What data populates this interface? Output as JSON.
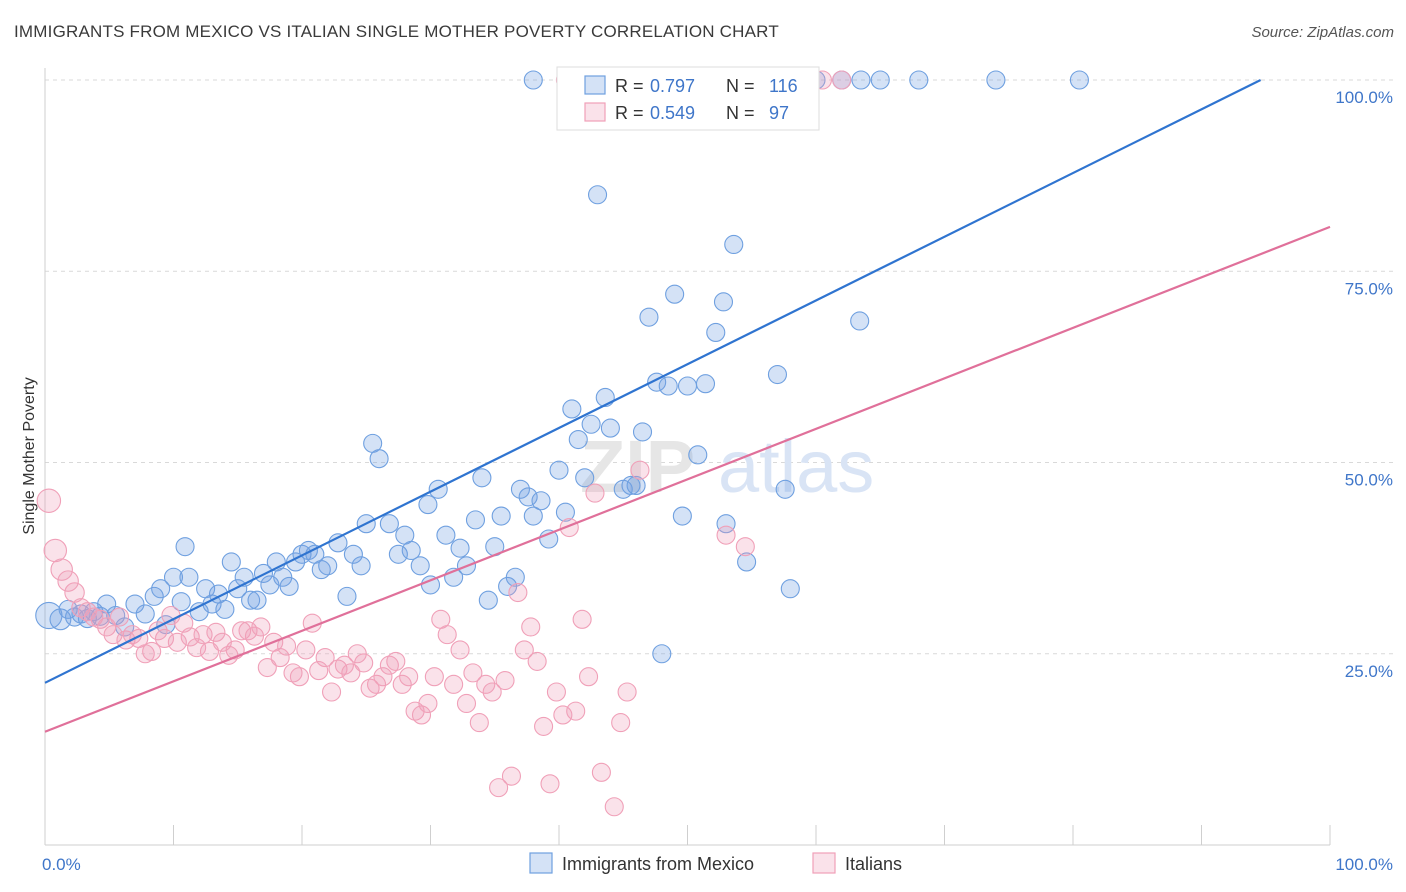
{
  "title": "IMMIGRANTS FROM MEXICO VS ITALIAN SINGLE MOTHER POVERTY CORRELATION CHART",
  "source": "Source: ZipAtlas.com",
  "watermark": {
    "zip": "ZIP",
    "atlas": "atlas"
  },
  "colors": {
    "blue": "#6fa0e0",
    "blue_fill": "rgba(111,160,224,0.30)",
    "blue_line": "#2f74d0",
    "pink": "#f0a0b8",
    "pink_fill": "rgba(240,160,184,0.30)",
    "pink_line": "#e0709a",
    "tick_text": "#3f76c9",
    "grid": "#d9d9d9"
  },
  "chart_data": {
    "type": "scatter",
    "xlabel": "",
    "ylabel": "Single Mother Poverty",
    "xlim": [
      0,
      100
    ],
    "ylim": [
      0,
      100
    ],
    "x_tick_labels": [
      "0.0%",
      "100.0%"
    ],
    "y_ticks": [
      25,
      50,
      75,
      100
    ],
    "y_tick_labels": [
      "25.0%",
      "50.0%",
      "75.0%",
      "100.0%"
    ],
    "grid": true,
    "legend_position": "top-center",
    "legend_stats": [
      {
        "r_label": "R =",
        "r_value": "0.797",
        "n_label": "N =",
        "n_value": "116"
      },
      {
        "r_label": "R =",
        "r_value": "0.549",
        "n_label": "N =",
        "n_value": "97"
      }
    ],
    "series": [
      {
        "name": "Immigrants from Mexico",
        "color": "#6fa0e0",
        "trend": {
          "x0": 0,
          "y0": 21.2,
          "x1": 94.6,
          "y1": 100
        },
        "points": [
          [
            0.3,
            30
          ],
          [
            1.2,
            29.5
          ],
          [
            1.8,
            30.8
          ],
          [
            2.3,
            29.8
          ],
          [
            2.8,
            30.2
          ],
          [
            3.3,
            29.6
          ],
          [
            3.8,
            30.5
          ],
          [
            4.3,
            29.9
          ],
          [
            4.8,
            31.5
          ],
          [
            5.5,
            30
          ],
          [
            6.2,
            28.5
          ],
          [
            7,
            31.5
          ],
          [
            7.8,
            30.2
          ],
          [
            8.5,
            32.5
          ],
          [
            9,
            33.5
          ],
          [
            9.4,
            28.8
          ],
          [
            10,
            35
          ],
          [
            10.6,
            31.8
          ],
          [
            10.9,
            39
          ],
          [
            11.2,
            35
          ],
          [
            12,
            30.5
          ],
          [
            12.5,
            33.5
          ],
          [
            13,
            31.5
          ],
          [
            13.5,
            32.8
          ],
          [
            14,
            30.8
          ],
          [
            14.5,
            37
          ],
          [
            15,
            33.5
          ],
          [
            15.5,
            35
          ],
          [
            16,
            32
          ],
          [
            16.5,
            32
          ],
          [
            17,
            35.5
          ],
          [
            17.5,
            34
          ],
          [
            18,
            37
          ],
          [
            18.5,
            35
          ],
          [
            19,
            33.8
          ],
          [
            19.5,
            37
          ],
          [
            20,
            38
          ],
          [
            20.5,
            38.5
          ],
          [
            21,
            38
          ],
          [
            21.5,
            36
          ],
          [
            22,
            36.5
          ],
          [
            22.8,
            39.5
          ],
          [
            23.5,
            32.5
          ],
          [
            24,
            38
          ],
          [
            24.6,
            36.5
          ],
          [
            25,
            42
          ],
          [
            25.5,
            52.5
          ],
          [
            26,
            50.5
          ],
          [
            26.8,
            42
          ],
          [
            27.5,
            38
          ],
          [
            28,
            40.5
          ],
          [
            28.5,
            38.5
          ],
          [
            29.2,
            36.5
          ],
          [
            29.8,
            44.5
          ],
          [
            30,
            34
          ],
          [
            30.6,
            46.5
          ],
          [
            31.2,
            40.5
          ],
          [
            31.8,
            35
          ],
          [
            32.3,
            38.8
          ],
          [
            32.8,
            36.5
          ],
          [
            33.5,
            42.5
          ],
          [
            34,
            48
          ],
          [
            34.5,
            32
          ],
          [
            35,
            39
          ],
          [
            35.5,
            43
          ],
          [
            36,
            33.8
          ],
          [
            36.6,
            35
          ],
          [
            37,
            46.5
          ],
          [
            37.6,
            45.5
          ],
          [
            38,
            43
          ],
          [
            38.6,
            45
          ],
          [
            39.2,
            40
          ],
          [
            40,
            49
          ],
          [
            40.5,
            43.5
          ],
          [
            41,
            57
          ],
          [
            41.5,
            53
          ],
          [
            42,
            48
          ],
          [
            42.5,
            55
          ],
          [
            43,
            85
          ],
          [
            43.6,
            58.5
          ],
          [
            44,
            54.5
          ],
          [
            45,
            46.5
          ],
          [
            45.6,
            47
          ],
          [
            46,
            47
          ],
          [
            46.5,
            54
          ],
          [
            47,
            69
          ],
          [
            47.6,
            60.5
          ],
          [
            48,
            25
          ],
          [
            48.5,
            60
          ],
          [
            49,
            72
          ],
          [
            49.6,
            43
          ],
          [
            50,
            60
          ],
          [
            50.8,
            51
          ],
          [
            51.4,
            60.3
          ],
          [
            52.2,
            67
          ],
          [
            52.8,
            71
          ],
          [
            53,
            42
          ],
          [
            53.6,
            78.5
          ],
          [
            54.6,
            37
          ],
          [
            57,
            61.5
          ],
          [
            57.6,
            46.5
          ],
          [
            58,
            33.5
          ],
          [
            63.4,
            68.5
          ],
          [
            38,
            100
          ],
          [
            41,
            100
          ],
          [
            42,
            100
          ],
          [
            52,
            100
          ],
          [
            54,
            100
          ],
          [
            56,
            100
          ],
          [
            60,
            100
          ],
          [
            62,
            100
          ],
          [
            63.5,
            100
          ],
          [
            65,
            100
          ],
          [
            68,
            100
          ],
          [
            74,
            100
          ],
          [
            80.5,
            100
          ]
        ]
      },
      {
        "name": "Italians",
        "color": "#f0a0b8",
        "trend": {
          "x0": 0,
          "y0": 14.8,
          "x1": 100,
          "y1": 80.8
        },
        "points": [
          [
            0.3,
            45
          ],
          [
            0.8,
            38.5
          ],
          [
            1.3,
            36
          ],
          [
            1.8,
            34.5
          ],
          [
            2.3,
            33
          ],
          [
            2.8,
            31
          ],
          [
            3.3,
            30.5
          ],
          [
            3.8,
            29.8
          ],
          [
            4.3,
            29.5
          ],
          [
            4.8,
            28.5
          ],
          [
            5.3,
            27.5
          ],
          [
            5.8,
            29.8
          ],
          [
            6.3,
            26.8
          ],
          [
            6.8,
            27.5
          ],
          [
            7.3,
            27
          ],
          [
            7.8,
            25
          ],
          [
            8.3,
            25.3
          ],
          [
            8.8,
            28
          ],
          [
            9.3,
            27
          ],
          [
            9.8,
            30
          ],
          [
            10.3,
            26.5
          ],
          [
            10.8,
            29
          ],
          [
            11.3,
            27.2
          ],
          [
            11.8,
            25.8
          ],
          [
            12.3,
            27.5
          ],
          [
            12.8,
            25.3
          ],
          [
            13.3,
            27.8
          ],
          [
            13.8,
            26.5
          ],
          [
            14.3,
            24.8
          ],
          [
            14.8,
            25.5
          ],
          [
            15.3,
            28
          ],
          [
            15.8,
            28
          ],
          [
            16.3,
            27.3
          ],
          [
            16.8,
            28.5
          ],
          [
            17.3,
            23.2
          ],
          [
            17.8,
            26.5
          ],
          [
            18.3,
            24.5
          ],
          [
            18.8,
            26
          ],
          [
            19.3,
            22.5
          ],
          [
            19.8,
            22
          ],
          [
            20.3,
            25.5
          ],
          [
            20.8,
            29
          ],
          [
            21.3,
            22.8
          ],
          [
            21.8,
            24.5
          ],
          [
            22.3,
            20
          ],
          [
            22.8,
            23
          ],
          [
            23.3,
            23.5
          ],
          [
            23.8,
            22.5
          ],
          [
            24.3,
            25
          ],
          [
            24.8,
            23.8
          ],
          [
            25.3,
            20.5
          ],
          [
            25.8,
            21
          ],
          [
            26.3,
            22
          ],
          [
            26.8,
            23.5
          ],
          [
            27.3,
            24
          ],
          [
            27.8,
            21
          ],
          [
            28.3,
            22
          ],
          [
            28.8,
            17.5
          ],
          [
            29.3,
            17
          ],
          [
            29.8,
            18.5
          ],
          [
            30.3,
            22
          ],
          [
            30.8,
            29.5
          ],
          [
            31.3,
            27.5
          ],
          [
            31.8,
            21
          ],
          [
            32.3,
            25.5
          ],
          [
            32.8,
            18.5
          ],
          [
            33.3,
            22.5
          ],
          [
            33.8,
            16
          ],
          [
            34.3,
            21
          ],
          [
            34.8,
            20
          ],
          [
            35.3,
            7.5
          ],
          [
            35.8,
            21.5
          ],
          [
            36.3,
            9
          ],
          [
            36.8,
            33
          ],
          [
            37.3,
            25.5
          ],
          [
            37.8,
            28.5
          ],
          [
            38.3,
            24
          ],
          [
            38.8,
            15.5
          ],
          [
            39.3,
            8
          ],
          [
            39.8,
            20
          ],
          [
            40.3,
            17
          ],
          [
            40.8,
            41.5
          ],
          [
            41.3,
            17.5
          ],
          [
            41.8,
            29.5
          ],
          [
            42.3,
            22
          ],
          [
            42.8,
            46
          ],
          [
            43.3,
            9.5
          ],
          [
            44.3,
            5
          ],
          [
            44.8,
            16
          ],
          [
            45.3,
            20
          ],
          [
            46.3,
            49
          ],
          [
            53,
            40.5
          ],
          [
            54.5,
            39
          ],
          [
            40.5,
            100
          ],
          [
            58.5,
            100
          ],
          [
            60.5,
            100
          ],
          [
            62,
            100
          ]
        ]
      }
    ]
  }
}
